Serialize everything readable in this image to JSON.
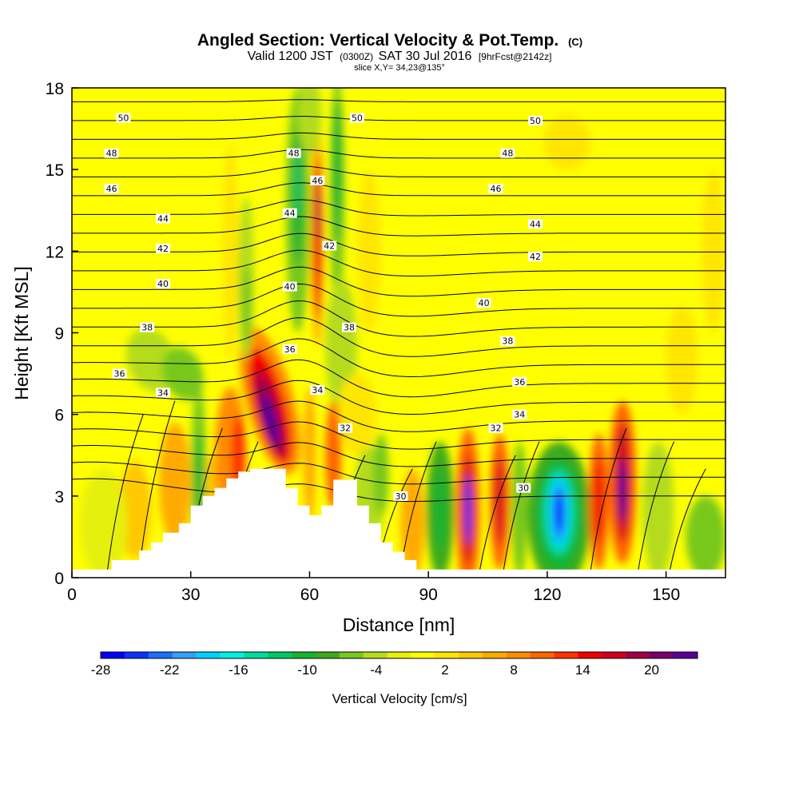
{
  "chart_data": {
    "type": "heatmap",
    "title": {
      "main": "Angled Section: Vertical Velocity & Pot.Temp.",
      "main_suffix": "(C)",
      "line2_a": "Valid 1200 JST",
      "line2_b": "(0300Z)",
      "line2_c": "SAT 30 Jul 2016",
      "line2_d": "[9hrFcst@2142z]",
      "line3": "slice X,Y= 34,23@135°"
    },
    "xlabel": "Distance [nm]",
    "ylabel": "Height [Kft MSL]",
    "xlim": [
      0,
      165
    ],
    "ylim": [
      0,
      18
    ],
    "x_ticks": [
      0,
      30,
      60,
      90,
      120,
      150
    ],
    "y_ticks": [
      0,
      3,
      6,
      9,
      12,
      15,
      18
    ],
    "colorbar": {
      "label": "Vertical Velocity [cm/s]",
      "tick_labels": [
        "-28",
        "-22",
        "-16",
        "-10",
        "-4",
        "2",
        "8",
        "14",
        "20"
      ],
      "min": -28,
      "max": 24,
      "colors": [
        "#0000ff",
        "#0a32ff",
        "#1e6eff",
        "#32a0ff",
        "#00d2ff",
        "#00f0e6",
        "#00dc9c",
        "#00c864",
        "#14b432",
        "#3caa1e",
        "#78c81e",
        "#b4dc1e",
        "#e6f00a",
        "#ffff00",
        "#ffe600",
        "#ffc800",
        "#ffaa00",
        "#ff8c00",
        "#ff6400",
        "#ff3200",
        "#f00000",
        "#d2001e",
        "#a00046",
        "#78006e",
        "#5a0096"
      ]
    },
    "terrain": {
      "x": [
        0,
        10,
        10,
        17,
        17,
        20,
        20,
        23,
        23,
        27,
        27,
        30,
        30,
        33,
        33,
        36,
        36,
        39,
        39,
        42,
        42,
        45,
        45,
        48,
        48,
        54,
        54,
        57,
        57,
        60,
        60,
        63,
        63,
        66,
        66,
        72,
        72,
        75,
        75,
        78,
        78,
        81,
        81,
        84,
        84,
        87,
        87,
        90
      ],
      "y": [
        0.3,
        0.3,
        0.65,
        0.65,
        1.0,
        1.0,
        1.3,
        1.3,
        1.65,
        1.65,
        2.0,
        2.0,
        2.65,
        2.65,
        3.0,
        3.0,
        3.3,
        3.3,
        3.65,
        3.65,
        3.9,
        3.9,
        4.0,
        4.0,
        4.0,
        4.0,
        3.3,
        3.3,
        2.65,
        2.65,
        2.3,
        2.3,
        2.65,
        2.65,
        3.6,
        3.6,
        2.65,
        2.65,
        2.0,
        2.0,
        1.3,
        1.3,
        0.95,
        0.95,
        0.65,
        0.65,
        0.3,
        0.3
      ]
    },
    "potential_temperature_labels": [
      {
        "label": "50",
        "x": 13,
        "y": 16.9
      },
      {
        "label": "50",
        "x": 72,
        "y": 16.9
      },
      {
        "label": "50",
        "x": 117,
        "y": 16.8
      },
      {
        "label": "48",
        "x": 10,
        "y": 15.6
      },
      {
        "label": "48",
        "x": 56,
        "y": 15.6
      },
      {
        "label": "48",
        "x": 110,
        "y": 15.6
      },
      {
        "label": "46",
        "x": 10,
        "y": 14.3
      },
      {
        "label": "46",
        "x": 62,
        "y": 14.6
      },
      {
        "label": "46",
        "x": 107,
        "y": 14.3
      },
      {
        "label": "44",
        "x": 23,
        "y": 13.2
      },
      {
        "label": "44",
        "x": 55,
        "y": 13.4
      },
      {
        "label": "44",
        "x": 117,
        "y": 13.0
      },
      {
        "label": "42",
        "x": 23,
        "y": 12.1
      },
      {
        "label": "42",
        "x": 65,
        "y": 12.2
      },
      {
        "label": "42",
        "x": 117,
        "y": 11.8
      },
      {
        "label": "40",
        "x": 23,
        "y": 10.8
      },
      {
        "label": "40",
        "x": 55,
        "y": 10.7
      },
      {
        "label": "40",
        "x": 104,
        "y": 10.1
      },
      {
        "label": "38",
        "x": 19,
        "y": 9.2
      },
      {
        "label": "38",
        "x": 70,
        "y": 9.2
      },
      {
        "label": "38",
        "x": 110,
        "y": 8.7
      },
      {
        "label": "36",
        "x": 12,
        "y": 7.5
      },
      {
        "label": "36",
        "x": 55,
        "y": 8.4
      },
      {
        "label": "36",
        "x": 113,
        "y": 7.2
      },
      {
        "label": "34",
        "x": 23,
        "y": 6.8
      },
      {
        "label": "34",
        "x": 62,
        "y": 6.9
      },
      {
        "label": "34",
        "x": 113,
        "y": 6.0
      },
      {
        "label": "32",
        "x": 69,
        "y": 5.5
      },
      {
        "label": "32",
        "x": 107,
        "y": 5.5
      },
      {
        "label": "30",
        "x": 83,
        "y": 3.0
      },
      {
        "label": "30",
        "x": 114,
        "y": 3.3
      }
    ]
  }
}
